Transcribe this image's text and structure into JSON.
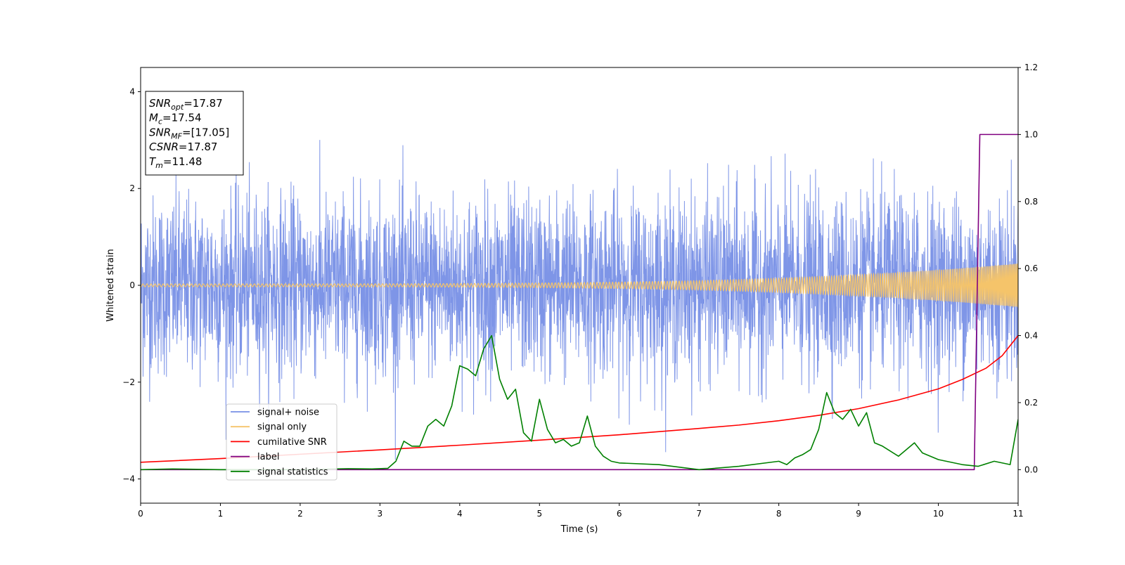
{
  "chart_data": {
    "type": "line",
    "xlabel": "Time (s)",
    "ylabel": "Whitened strain",
    "xlim": [
      0,
      11
    ],
    "ylim": [
      -4.5,
      4.5
    ],
    "ylim_right": [
      -0.1,
      1.2
    ],
    "xticks": [
      "0",
      "1",
      "2",
      "3",
      "4",
      "5",
      "6",
      "7",
      "8",
      "9",
      "10",
      "11"
    ],
    "yticks_left": [
      "4",
      "2",
      "0",
      "−2",
      "−4"
    ],
    "yticks_right": [
      "1.2",
      "1.0",
      "0.8",
      "0.6",
      "0.4",
      "0.2",
      "0.0"
    ],
    "grid": false,
    "legend_position": "lower-left",
    "info_box": [
      {
        "sym": "SNR",
        "sub": "opt",
        "value": "=17.87"
      },
      {
        "sym": "M",
        "sub": "c",
        "value": "=17.54"
      },
      {
        "sym": "SNR",
        "sub": "MF",
        "value": "=[17.05]"
      },
      {
        "sym": "CSNR",
        "sub": "",
        "value": "=17.87"
      },
      {
        "sym": "T",
        "sub": "m",
        "value": "=11.48"
      }
    ],
    "series": [
      {
        "name": "signal+ noise",
        "color": "#778fe6",
        "axis": "left",
        "kind": "noise",
        "typical_range": [
          -2.2,
          2.2
        ],
        "extremes": [
          -3.6,
          3.45
        ]
      },
      {
        "name": "signal only",
        "color": "#f5c46a",
        "axis": "left",
        "kind": "chirp",
        "amplitude_start": 0.03,
        "amplitude_end": 0.45
      },
      {
        "name": "cumilative SNR",
        "color": "#ff0000",
        "axis": "right",
        "x": [
          0,
          1,
          2,
          3,
          4,
          5,
          6,
          7,
          7.5,
          8,
          8.5,
          9,
          9.5,
          10,
          10.3,
          10.6,
          10.8,
          11
        ],
        "y": [
          0.022,
          0.033,
          0.046,
          0.059,
          0.073,
          0.088,
          0.104,
          0.123,
          0.133,
          0.146,
          0.162,
          0.182,
          0.208,
          0.241,
          0.269,
          0.303,
          0.34,
          0.4
        ]
      },
      {
        "name": "label",
        "color": "#800080",
        "axis": "right",
        "x": [
          0,
          10.45,
          10.52,
          11
        ],
        "y": [
          0,
          0,
          1,
          1
        ]
      },
      {
        "name": "signal statistics",
        "color": "#008000",
        "axis": "right",
        "x": [
          0,
          0.4,
          1,
          2,
          2.6,
          2.9,
          3.1,
          3.2,
          3.3,
          3.4,
          3.5,
          3.6,
          3.7,
          3.8,
          3.9,
          4.0,
          4.1,
          4.2,
          4.3,
          4.4,
          4.5,
          4.6,
          4.7,
          4.8,
          4.9,
          5.0,
          5.1,
          5.2,
          5.3,
          5.4,
          5.5,
          5.6,
          5.7,
          5.8,
          5.9,
          6.0,
          6.5,
          7.0,
          7.5,
          8.0,
          8.1,
          8.2,
          8.3,
          8.4,
          8.5,
          8.6,
          8.7,
          8.8,
          8.9,
          9.0,
          9.1,
          9.2,
          9.3,
          9.5,
          9.7,
          9.8,
          10.0,
          10.3,
          10.5,
          10.7,
          10.9,
          11.0
        ],
        "y": [
          0.0,
          0.002,
          0.0,
          0.0,
          0.003,
          0.002,
          0.004,
          0.025,
          0.085,
          0.07,
          0.07,
          0.13,
          0.15,
          0.13,
          0.19,
          0.31,
          0.3,
          0.28,
          0.36,
          0.4,
          0.27,
          0.21,
          0.24,
          0.11,
          0.085,
          0.21,
          0.12,
          0.08,
          0.09,
          0.07,
          0.08,
          0.16,
          0.07,
          0.04,
          0.025,
          0.02,
          0.015,
          0.0,
          0.01,
          0.025,
          0.015,
          0.035,
          0.045,
          0.06,
          0.12,
          0.23,
          0.17,
          0.15,
          0.18,
          0.13,
          0.17,
          0.08,
          0.07,
          0.04,
          0.08,
          0.05,
          0.03,
          0.015,
          0.01,
          0.025,
          0.015,
          0.15
        ]
      }
    ]
  }
}
